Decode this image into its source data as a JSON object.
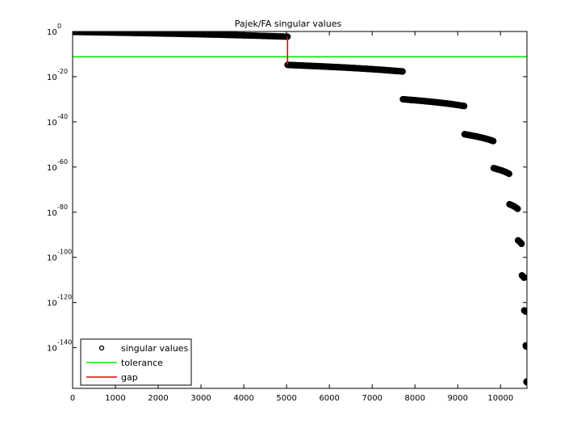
{
  "chart_data": {
    "type": "scatter",
    "title": "Pajek/FA singular values",
    "xlabel": "",
    "ylabel": "",
    "y_scale": "log",
    "xlim": [
      0,
      10617
    ],
    "ylim_exponent": [
      -158,
      0
    ],
    "x_ticks": [
      {
        "value": 0,
        "label": "0"
      },
      {
        "value": 1000,
        "label": "1000"
      },
      {
        "value": 2000,
        "label": "2000"
      },
      {
        "value": 3000,
        "label": "3000"
      },
      {
        "value": 4000,
        "label": "4000"
      },
      {
        "value": 5000,
        "label": "5000"
      },
      {
        "value": 6000,
        "label": "6000"
      },
      {
        "value": 7000,
        "label": "7000"
      },
      {
        "value": 8000,
        "label": "8000"
      },
      {
        "value": 9000,
        "label": "9000"
      },
      {
        "value": 10000,
        "label": "10000"
      }
    ],
    "y_ticks": [
      {
        "exponent": 0,
        "base": "10",
        "sup": "0"
      },
      {
        "exponent": -20,
        "base": "10",
        "sup": "-20"
      },
      {
        "exponent": -40,
        "base": "10",
        "sup": "-40"
      },
      {
        "exponent": -60,
        "base": "10",
        "sup": "-60"
      },
      {
        "exponent": -80,
        "base": "10",
        "sup": "-80"
      },
      {
        "exponent": -100,
        "base": "10",
        "sup": "-100"
      },
      {
        "exponent": -120,
        "base": "10",
        "sup": "-120"
      },
      {
        "exponent": -140,
        "base": "10",
        "sup": "-140"
      }
    ],
    "grid": false,
    "legend_position": "bottom-left",
    "series": [
      {
        "name": "singular values",
        "kind": "markers",
        "marker": "circle",
        "color": "#000000",
        "segments": [
          {
            "x_start": 1,
            "x_end": 5020,
            "log10_start": -0.2,
            "log10_end": -2.3
          },
          {
            "x_start": 5025,
            "x_end": 7710,
            "log10_start": -14.8,
            "log10_end": -17.7
          },
          {
            "x_start": 7720,
            "x_end": 9150,
            "log10_start": -30.0,
            "log10_end": -33.0
          },
          {
            "x_start": 9160,
            "x_end": 9830,
            "log10_start": -45.5,
            "log10_end": -48.5
          },
          {
            "x_start": 9840,
            "x_end": 10200,
            "log10_start": -60.5,
            "log10_end": -63.0
          },
          {
            "x_start": 10210,
            "x_end": 10400,
            "log10_start": -76.5,
            "log10_end": -78.5
          },
          {
            "x_start": 10410,
            "x_end": 10490,
            "log10_start": -92.5,
            "log10_end": -94.0
          },
          {
            "x_start": 10500,
            "x_end": 10550,
            "log10_start": -108.0,
            "log10_end": -109.0
          },
          {
            "x_start": 10555,
            "x_end": 10585,
            "log10_start": -123.5,
            "log10_end": -124.0
          },
          {
            "x_start": 10590,
            "x_end": 10605,
            "log10_start": -139.0,
            "log10_end": -139.5
          },
          {
            "x_start": 10608,
            "x_end": 10617,
            "log10_start": -155.0,
            "log10_end": -155.3
          }
        ]
      },
      {
        "name": "tolerance",
        "kind": "hline",
        "color": "#00ee00",
        "log10_value": -11.2
      },
      {
        "name": "gap",
        "kind": "vline",
        "color": "#ee0000",
        "x": 5022,
        "log10_from": -2.3,
        "log10_to": -14.8
      }
    ]
  }
}
